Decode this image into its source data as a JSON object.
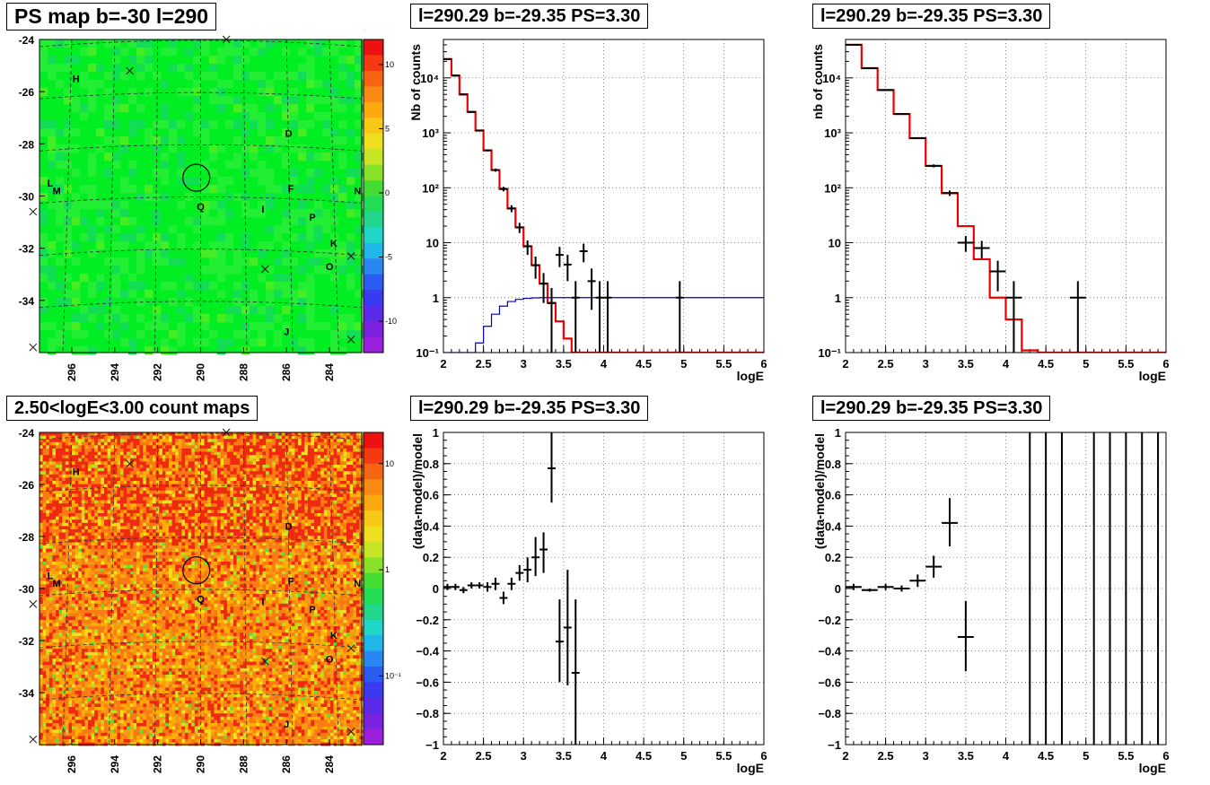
{
  "panels": {
    "ps_map": {
      "title": "PS map b=-30 l=290",
      "colorbar_ticks": [
        "10",
        "5",
        "0",
        "-5",
        "-10"
      ],
      "colors": {
        "background": "#00ee22"
      }
    },
    "spectrum_left": {
      "title": "l=290.29 b=-29.35 PS=3.30"
    },
    "spectrum_right": {
      "title": "l=290.29 b=-29.35 PS=3.30"
    },
    "count_map": {
      "title": "2.50<logE<3.00 count maps",
      "colorbar_ticks": [
        "10",
        "1",
        "10⁻¹"
      ]
    },
    "residual_left": {
      "title": "l=290.29 b=-29.35 PS=3.30"
    },
    "residual_right": {
      "title": "l=290.29 b=-29.35 PS=3.30"
    }
  },
  "sky_map": {
    "l_ticks": [
      "296",
      "294",
      "292",
      "290",
      "288",
      "286",
      "284"
    ],
    "b_ticks": [
      "-24",
      "-26",
      "-28",
      "-30",
      "-32",
      "-34"
    ],
    "sources": [
      {
        "label": "H",
        "l": 295.8,
        "b": -25.5
      },
      {
        "label": "D",
        "l": 285.9,
        "b": -27.6
      },
      {
        "label": "L",
        "l": 297.0,
        "b": -29.5
      },
      {
        "label": "M",
        "l": 296.7,
        "b": -29.8
      },
      {
        "label": "F",
        "l": 285.8,
        "b": -29.7
      },
      {
        "label": "N",
        "l": 282.7,
        "b": -29.8
      },
      {
        "label": "Q",
        "l": 290.0,
        "b": -30.4
      },
      {
        "label": "I",
        "l": 287.1,
        "b": -30.5
      },
      {
        "label": "P",
        "l": 284.8,
        "b": -30.8
      },
      {
        "label": "K",
        "l": 283.8,
        "b": -31.8
      },
      {
        "label": "O",
        "l": 284.0,
        "b": -32.7
      },
      {
        "label": "J",
        "l": 286.0,
        "b": -35.2
      }
    ],
    "crosses": [
      {
        "l": 293.3,
        "b": -25.2
      },
      {
        "l": 288.8,
        "b": -24.0
      },
      {
        "l": 297.8,
        "b": -30.6
      },
      {
        "l": 287.0,
        "b": -32.8
      },
      {
        "l": 283.0,
        "b": -32.3
      },
      {
        "l": 283.0,
        "b": -35.5
      },
      {
        "l": 297.8,
        "b": -35.8
      }
    ],
    "circle": {
      "l": 290.2,
      "b": -29.3
    }
  },
  "chart_data": [
    {
      "panel": "spectrum_left",
      "type": "line",
      "title": "l=290.29 b=-29.35 PS=3.30",
      "xlabel": "logE",
      "ylabel": "Nb of counts",
      "log_y": true,
      "xlim": [
        2,
        6
      ],
      "ylim": [
        0.1,
        50000
      ],
      "x_ticks": [
        "2",
        "2.5",
        "3",
        "3.5",
        "4",
        "4.5",
        "5",
        "5.5",
        "6"
      ],
      "y_ticks": [
        "10⁻¹",
        "1",
        "10",
        "10²",
        "10³",
        "10⁴"
      ],
      "series": [
        {
          "type": "step",
          "color": "#ee0000",
          "edges": [
            2.0,
            2.1,
            2.2,
            2.3,
            2.4,
            2.5,
            2.6,
            2.7,
            2.8,
            2.9,
            3.0,
            3.1,
            3.2,
            3.3,
            3.4,
            3.5,
            3.6,
            3.7,
            3.8,
            3.9,
            4.0,
            4.1,
            4.2,
            6.0
          ],
          "values": [
            22000,
            11000,
            5000,
            2400,
            1100,
            480,
            210,
            95,
            42,
            19,
            8.6,
            3.9,
            1.8,
            0.8,
            0.37,
            0.18,
            0.1,
            0.1,
            0.1,
            0.1,
            0.1,
            0.1,
            0.1
          ]
        },
        {
          "type": "step",
          "color": "#0000cc",
          "edges": [
            2.0,
            2.1,
            2.2,
            2.3,
            2.4,
            2.5,
            2.6,
            2.7,
            2.8,
            2.9,
            3.0,
            3.1,
            3.2,
            3.3,
            6.0
          ],
          "values": [
            0.01,
            0.1,
            0.1,
            0.1,
            0.15,
            0.3,
            0.5,
            0.7,
            0.85,
            0.93,
            0.97,
            0.99,
            1.0,
            1.0
          ]
        },
        {
          "type": "errorbar",
          "color": "#000000",
          "x": [
            2.05,
            2.15,
            2.25,
            2.35,
            2.45,
            2.55,
            2.65,
            2.75,
            2.85,
            2.95,
            3.05,
            3.15,
            3.25,
            3.35,
            3.45,
            3.55,
            3.65,
            3.75,
            3.85,
            3.95,
            4.05,
            4.95
          ],
          "y": [
            22000,
            11000,
            5000,
            2400,
            1100,
            480,
            210,
            95,
            42,
            19,
            8.6,
            3.9,
            1.8,
            0.8,
            6,
            4,
            1,
            7,
            2,
            1,
            1,
            1
          ],
          "y_low": [
            21800,
            10800,
            4900,
            2350,
            1060,
            460,
            196,
            86,
            36,
            15,
            6,
            2.2,
            0.8,
            0.1,
            3.6,
            2,
            0.1,
            4.4,
            0.6,
            0.1,
            0.1,
            0.1
          ],
          "y_high": [
            22200,
            11200,
            5100,
            2450,
            1140,
            500,
            224,
            104,
            48,
            23,
            11,
            5.6,
            2.8,
            1.5,
            8.4,
            6,
            2,
            9.6,
            3.4,
            2,
            2,
            2
          ]
        }
      ]
    },
    {
      "panel": "spectrum_right",
      "type": "line",
      "title": "l=290.29 b=-29.35 PS=3.30",
      "xlabel": "logE",
      "ylabel": "nb of counts",
      "log_y": true,
      "xlim": [
        2,
        6
      ],
      "ylim": [
        0.1,
        50000
      ],
      "x_ticks": [
        "2",
        "2.5",
        "3",
        "3.5",
        "4",
        "4.5",
        "5",
        "5.5",
        "6"
      ],
      "y_ticks": [
        "10⁻¹",
        "1",
        "10",
        "10²",
        "10³",
        "10⁴"
      ],
      "series": [
        {
          "type": "step",
          "color": "#ee0000",
          "edges": [
            2.0,
            2.2,
            2.4,
            2.6,
            2.8,
            3.0,
            3.2,
            3.4,
            3.6,
            3.8,
            4.0,
            4.2,
            4.4,
            6.0
          ],
          "values": [
            40000,
            15000,
            6000,
            2200,
            800,
            250,
            80,
            20,
            5,
            1,
            0.4,
            0.11,
            0.1
          ]
        },
        {
          "type": "errorbar",
          "color": "#000000",
          "x": [
            2.1,
            2.3,
            2.5,
            2.7,
            2.9,
            3.1,
            3.3,
            3.5,
            3.7,
            3.9,
            4.1,
            4.9
          ],
          "y": [
            40000,
            15000,
            6000,
            2200,
            800,
            250,
            80,
            10,
            8,
            3,
            1,
            1
          ],
          "y_low": [
            39600,
            14800,
            5900,
            2150,
            770,
            234,
            71,
            6.8,
            5.2,
            1.3,
            0.1,
            0.1
          ],
          "y_high": [
            40400,
            15200,
            6100,
            2250,
            830,
            266,
            89,
            13.2,
            10.8,
            4.7,
            2,
            2
          ]
        }
      ]
    },
    {
      "panel": "residual_left",
      "type": "scatter",
      "title": "l=290.29 b=-29.35 PS=3.30",
      "xlabel": "logE",
      "ylabel": "(data-model)/model",
      "xlim": [
        2,
        6
      ],
      "ylim": [
        -1,
        1
      ],
      "x_ticks": [
        "2",
        "2.5",
        "3",
        "3.5",
        "4",
        "4.5",
        "5",
        "5.5",
        "6"
      ],
      "y_ticks": [
        "−1",
        "−0.8",
        "−0.6",
        "−0.4",
        "−0.2",
        "0",
        "0.2",
        "0.4",
        "0.6",
        "0.8",
        "1"
      ],
      "series": [
        {
          "type": "errorbar",
          "color": "#000000",
          "x": [
            2.05,
            2.15,
            2.25,
            2.35,
            2.45,
            2.55,
            2.65,
            2.75,
            2.85,
            2.95,
            3.05,
            3.15,
            3.25,
            3.35,
            3.45,
            3.55,
            3.65
          ],
          "y": [
            0.01,
            0.01,
            -0.01,
            0.02,
            0.02,
            0.01,
            0.03,
            -0.06,
            0.03,
            0.1,
            0.12,
            0.2,
            0.25,
            0.77,
            -0.34,
            -0.25,
            -0.54
          ],
          "y_low": [
            -0.01,
            -0.01,
            -0.03,
            0.0,
            0.0,
            -0.02,
            -0.01,
            -0.1,
            -0.01,
            0.05,
            0.04,
            0.08,
            0.1,
            0.55,
            -0.6,
            -0.62,
            -1.0
          ],
          "y_high": [
            0.03,
            0.03,
            0.01,
            0.04,
            0.04,
            0.04,
            0.07,
            -0.02,
            0.07,
            0.15,
            0.2,
            0.33,
            0.36,
            1.0,
            -0.07,
            0.12,
            -0.07
          ]
        }
      ]
    },
    {
      "panel": "residual_right",
      "type": "scatter",
      "title": "l=290.29 b=-29.35 PS=3.30",
      "xlabel": "logE",
      "ylabel": "(data-model)/model",
      "xlim": [
        2,
        6
      ],
      "ylim": [
        -1,
        1
      ],
      "x_ticks": [
        "2",
        "2.5",
        "3",
        "3.5",
        "4",
        "4.5",
        "5",
        "5.5",
        "6"
      ],
      "y_ticks": [
        "−1",
        "−0.8",
        "−0.6",
        "−0.4",
        "−0.2",
        "0",
        "0.2",
        "0.4",
        "0.6",
        "0.8",
        "1"
      ],
      "series": [
        {
          "type": "errorbar",
          "color": "#000000",
          "x": [
            2.1,
            2.3,
            2.5,
            2.7,
            2.9,
            3.1,
            3.3,
            3.5
          ],
          "y": [
            0.01,
            -0.01,
            0.01,
            0.0,
            0.05,
            0.14,
            0.42,
            -0.31
          ],
          "y_low": [
            -0.01,
            -0.02,
            -0.01,
            -0.02,
            0.01,
            0.07,
            0.27,
            -0.53
          ],
          "y_high": [
            0.03,
            0.0,
            0.03,
            0.02,
            0.09,
            0.21,
            0.58,
            -0.08
          ]
        },
        {
          "type": "vlines",
          "color": "#000000",
          "x": [
            4.3,
            4.5,
            4.7,
            5.1,
            5.3,
            5.5,
            5.7,
            5.9
          ]
        }
      ]
    }
  ]
}
